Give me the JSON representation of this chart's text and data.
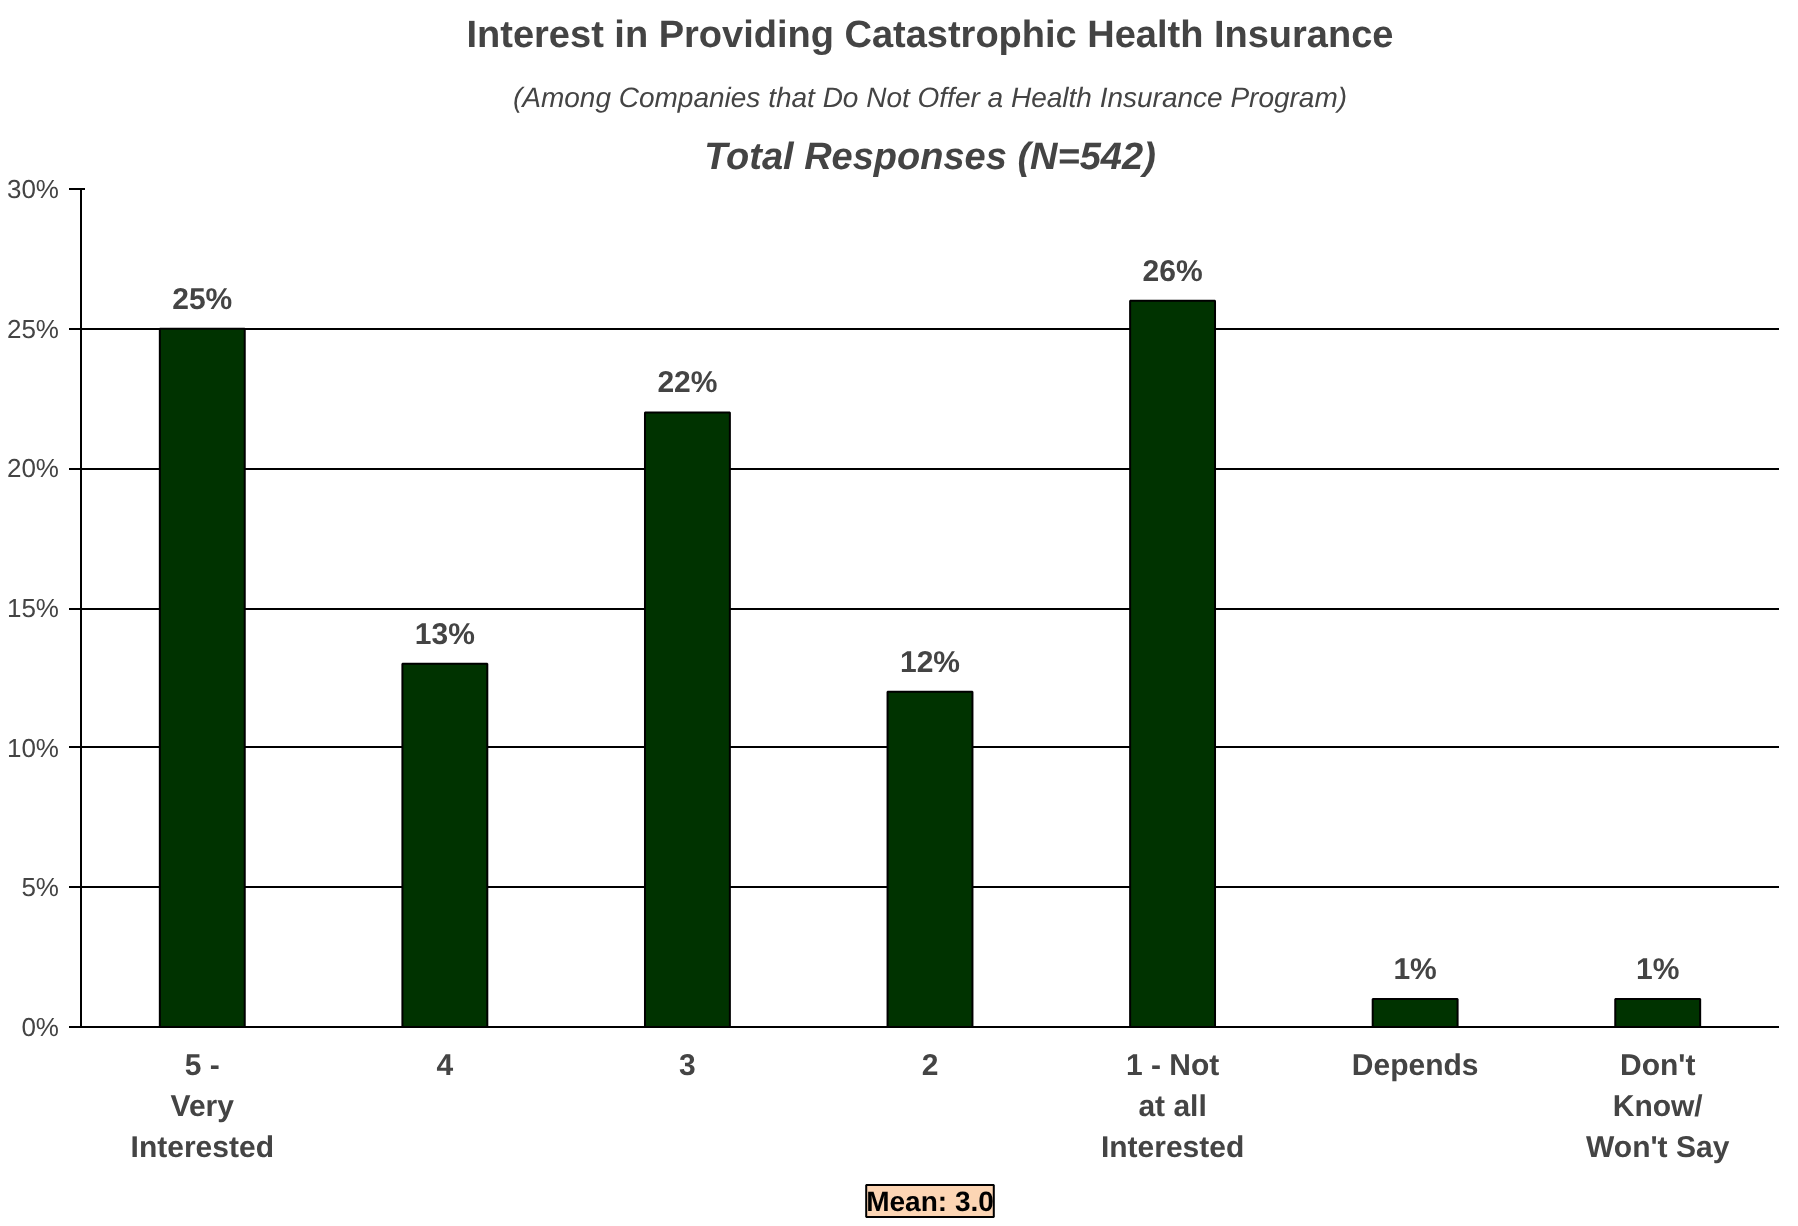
{
  "chart_data": {
    "type": "bar",
    "title": "Interest in Providing Catastrophic Health Insurance",
    "subtitle": "(Among Companies that Do Not Offer a Health Insurance Program)",
    "annotations": [
      "Total Responses (N=542)",
      "Mean: 3.0"
    ],
    "categories": [
      "5 -\nVery\nInterested",
      "4",
      "3",
      "2",
      "1 - Not\nat all\nInterested",
      "Depends",
      "Don't\nKnow/\nWon't Say"
    ],
    "values": [
      25,
      13,
      22,
      12,
      26,
      1,
      1
    ],
    "value_labels": [
      "25%",
      "13%",
      "22%",
      "12%",
      "26%",
      "1%",
      "1%"
    ],
    "color": "#003300",
    "ylim": [
      0,
      30
    ],
    "yticks": [
      {
        "value": 0,
        "label": "0%"
      },
      {
        "value": 5,
        "label": "5%"
      },
      {
        "value": 10,
        "label": "10%"
      },
      {
        "value": 15,
        "label": "15%"
      },
      {
        "value": 20,
        "label": "20%"
      },
      {
        "value": 25,
        "label": "25%"
      },
      {
        "value": 30,
        "label": "30%"
      }
    ],
    "grid": "y"
  }
}
